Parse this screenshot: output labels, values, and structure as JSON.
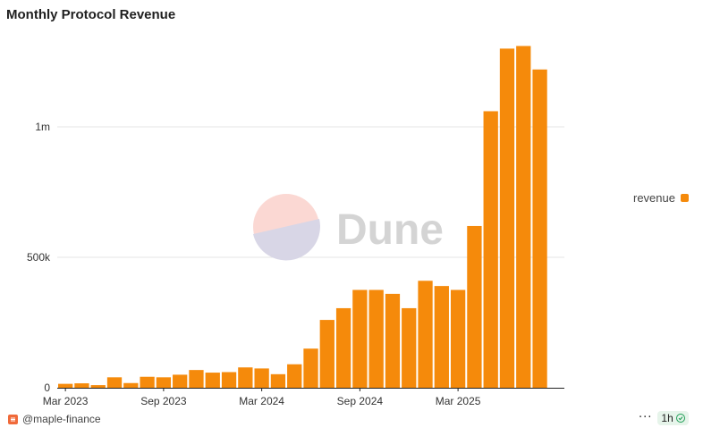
{
  "title": "Monthly Protocol Revenue",
  "watermark": "Dune",
  "legend": {
    "label": "revenue",
    "color": "#f58a0b"
  },
  "footer": {
    "user": "@maple-finance",
    "refresh": "1h",
    "more": "···"
  },
  "chart_data": {
    "type": "bar",
    "title": "Monthly Protocol Revenue",
    "xlabel": "",
    "ylabel": "",
    "ylim": [
      0,
      1300000
    ],
    "grid": true,
    "legend_position": "right",
    "x_tick_labels": [
      "Mar 2023",
      "Sep 2023",
      "Mar 2024",
      "Sep 2024",
      "Mar 2025"
    ],
    "y_tick_labels": [
      "0",
      "500k",
      "1m"
    ],
    "y_ticks": [
      0,
      500000,
      1000000
    ],
    "categories": [
      "2023-03",
      "2023-04",
      "2023-05",
      "2023-06",
      "2023-07",
      "2023-08",
      "2023-09",
      "2023-10",
      "2023-11",
      "2023-12",
      "2024-01",
      "2024-02",
      "2024-03",
      "2024-04",
      "2024-05",
      "2024-06",
      "2024-07",
      "2024-08",
      "2024-09",
      "2024-10",
      "2024-11",
      "2024-12",
      "2025-01",
      "2025-02",
      "2025-03",
      "2025-04",
      "2025-05",
      "2025-06",
      "2025-07",
      "2025-08",
      "2025-09"
    ],
    "series": [
      {
        "name": "revenue",
        "color": "#f58a0b",
        "values": [
          15000,
          17000,
          10000,
          40000,
          18000,
          42000,
          40000,
          50000,
          68000,
          58000,
          60000,
          78000,
          74000,
          52000,
          90000,
          150000,
          260000,
          305000,
          375000,
          375000,
          360000,
          305000,
          410000,
          390000,
          375000,
          620000,
          1060000,
          1300000,
          1310000,
          1220000,
          0
        ]
      }
    ]
  }
}
